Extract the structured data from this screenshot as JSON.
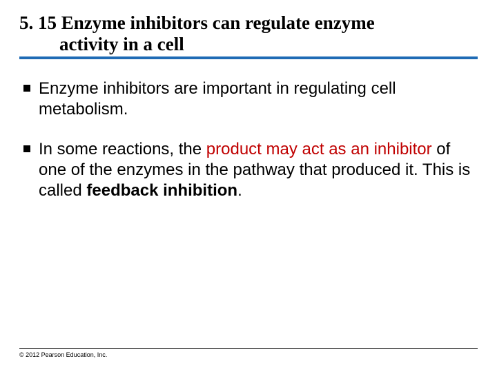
{
  "title": {
    "line1": "5. 15 Enzyme inhibitors can regulate enzyme",
    "line2": "activity in a cell"
  },
  "colors": {
    "title_rule": "#1f6bb5",
    "bullet_marker": "#000000",
    "highlight_red": "#c00000",
    "text": "#000000",
    "background": "#ffffff"
  },
  "fonts": {
    "title_family": "Times New Roman",
    "title_size_pt": 20,
    "title_weight": "bold",
    "body_family": "Arial",
    "body_size_pt": 18
  },
  "bullets": [
    {
      "pre": "Enzyme inhibitors are important in regulating cell metabolism."
    },
    {
      "pre": "In some reactions, the ",
      "red": "product may act as an inhibitor",
      "mid": " of one of the enzymes in the pathway that produced it. This is called ",
      "bold": "feedback inhibition",
      "post": "."
    }
  ],
  "copyright": "© 2012 Pearson Education, Inc."
}
